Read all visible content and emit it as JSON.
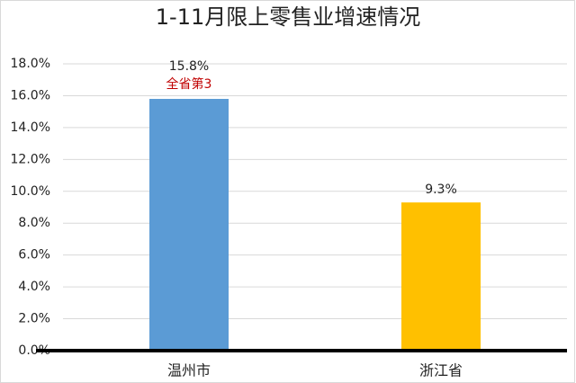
{
  "chart_data": {
    "type": "bar",
    "title": "1-11月限上零售业增速情况",
    "categories": [
      "温州市",
      "浙江省"
    ],
    "values": [
      15.8,
      9.3
    ],
    "value_labels": [
      "15.8%",
      "9.3%"
    ],
    "colors": [
      "#5b9bd5",
      "#ffc000"
    ],
    "annotation": "全省第3",
    "annotation_color": "#c00000",
    "ylim": [
      0,
      18
    ],
    "yticks": [
      {
        "value": 0,
        "label": "0.0%"
      },
      {
        "value": 2,
        "label": "2.0%"
      },
      {
        "value": 4,
        "label": "4.0%"
      },
      {
        "value": 6,
        "label": "6.0%"
      },
      {
        "value": 8,
        "label": "8.0%"
      },
      {
        "value": 10,
        "label": "10.0%"
      },
      {
        "value": 12,
        "label": "12.0%"
      },
      {
        "value": 14,
        "label": "14.0%"
      },
      {
        "value": 16,
        "label": "16.0%"
      },
      {
        "value": 18,
        "label": "18.0%"
      }
    ],
    "grid": true
  }
}
